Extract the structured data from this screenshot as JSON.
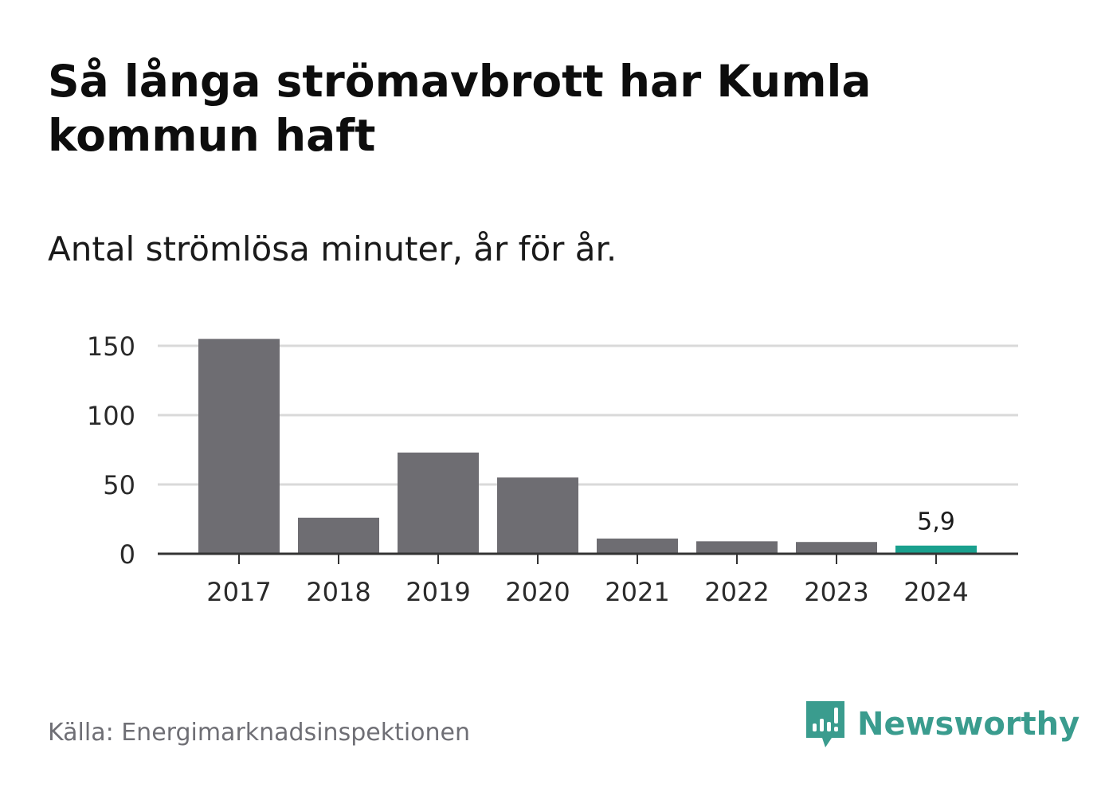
{
  "header": {
    "title": "Så långa strömavbrott har Kumla kommun haft",
    "subtitle": "Antal strömlösa minuter, år för år."
  },
  "footer": {
    "source": "Källa: Energimarknadsinspektionen",
    "brand_name": "Newsworthy",
    "brand_icon": "bar-chart-speech-bubble-icon"
  },
  "colors": {
    "bar": "#6e6d72",
    "highlight": "#1aa08e",
    "grid": "#d9d9d9",
    "axis": "#333333",
    "brand": "#3a9c8e"
  },
  "chart_data": {
    "type": "bar",
    "title": "Så långa strömavbrott har Kumla kommun haft",
    "subtitle": "Antal strömlösa minuter, år för år.",
    "xlabel": "",
    "ylabel": "",
    "categories": [
      "2017",
      "2018",
      "2019",
      "2020",
      "2021",
      "2022",
      "2023",
      "2024"
    ],
    "values": [
      155,
      26,
      73,
      55,
      11,
      9,
      8.5,
      5.9
    ],
    "ylim": [
      0,
      150
    ],
    "yticks": [
      0,
      50,
      100,
      150
    ],
    "ytick_labels": [
      "0",
      "50",
      "100",
      "150"
    ],
    "highlight_category": "2024",
    "data_labels": [
      {
        "category": "2024",
        "text": "5,9"
      }
    ],
    "grid": true,
    "legend": "none"
  }
}
